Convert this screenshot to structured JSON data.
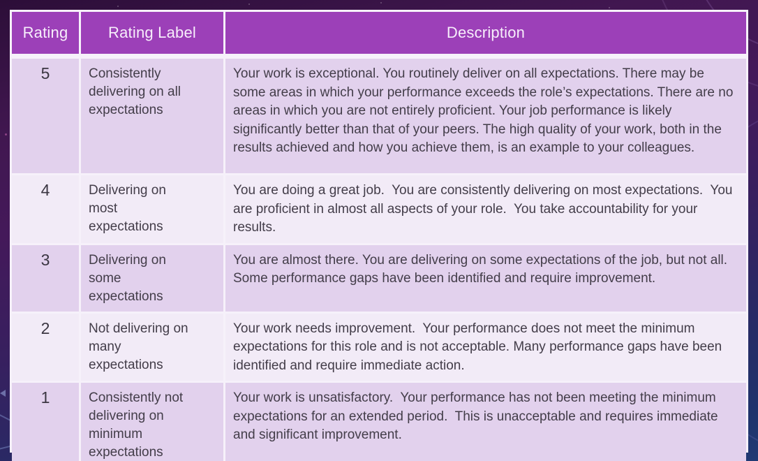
{
  "table": {
    "columns": [
      {
        "label": "Rating"
      },
      {
        "label": "Rating Label"
      },
      {
        "label": "Description"
      }
    ],
    "rows": [
      {
        "rating": "5",
        "label": "Consistently\ndelivering on all\nexpectations",
        "description": "Your work is exceptional. You routinely deliver on all expectations. There may be some areas in which your performance exceeds the role’s expectations. There are no areas in which you are not entirely proficient. Your job performance is likely significantly better than that of your peers. The high quality of your work, both in the results achieved and how you achieve them, is an example to your colleagues."
      },
      {
        "rating": "4",
        "label": "Delivering on\nmost\nexpectations",
        "description": "You are doing a great job.  You are consistently delivering on most expectations.  You are proficient in almost all aspects of your role.  You take accountability for your results."
      },
      {
        "rating": "3",
        "label": "Delivering on\nsome\nexpectations",
        "description": "You are almost there. You are delivering on some expectations of the job, but not all. Some performance gaps have been identified and require improvement."
      },
      {
        "rating": "2",
        "label": "Not delivering on\nmany\nexpectations",
        "description": "Your work needs improvement.  Your performance does not meet the minimum expectations for this role and is not acceptable. Many performance gaps have been identified and require immediate action."
      },
      {
        "rating": "1",
        "label": "Consistently not\ndelivering on\nminimum\nexpectations",
        "description": "Your work is unsatisfactory.  Your performance has not been meeting the minimum expectations for an extended period.  This is unacceptable and requires immediate and significant improvement."
      }
    ]
  },
  "colors": {
    "header_bg": "#9c40b8",
    "header_text": "#f7eefb",
    "row_dark": "#e2d1ed",
    "row_light": "#f2ebf7",
    "divider": "#f6f1fa",
    "body_text": "#433d49",
    "bg_top": "#2c0e38",
    "bg_mid": "#44195a",
    "bg_bottom": "#213a74"
  }
}
